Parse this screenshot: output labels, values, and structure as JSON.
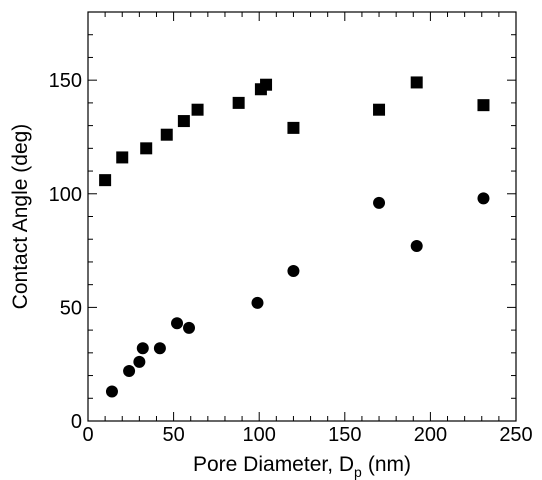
{
  "chart_data": {
    "type": "scatter",
    "title": "",
    "xlabel": "Pore Diameter, D",
    "xlabel_subscript": "p",
    "xlabel_unit": "(nm)",
    "ylabel": "Contact Angle (deg)",
    "xlim": [
      0,
      250
    ],
    "ylim": [
      0,
      180
    ],
    "x_ticks": [
      0,
      50,
      100,
      150,
      200,
      250
    ],
    "y_ticks": [
      0,
      50,
      100,
      150
    ],
    "grid": false,
    "legend": "none",
    "series": [
      {
        "marker": "square",
        "color": "#000000",
        "x": [
          10,
          20,
          34,
          46,
          56,
          64,
          88,
          101,
          104,
          120,
          170,
          192,
          231
        ],
        "y": [
          106,
          116,
          120,
          126,
          132,
          137,
          140,
          146,
          148,
          129,
          137,
          149,
          139
        ]
      },
      {
        "marker": "circle",
        "color": "#000000",
        "x": [
          14,
          24,
          30,
          32,
          42,
          52,
          59,
          99,
          120,
          170,
          192,
          231
        ],
        "y": [
          13,
          22,
          26,
          32,
          32,
          43,
          41,
          52,
          66,
          96,
          77,
          98
        ]
      }
    ]
  }
}
